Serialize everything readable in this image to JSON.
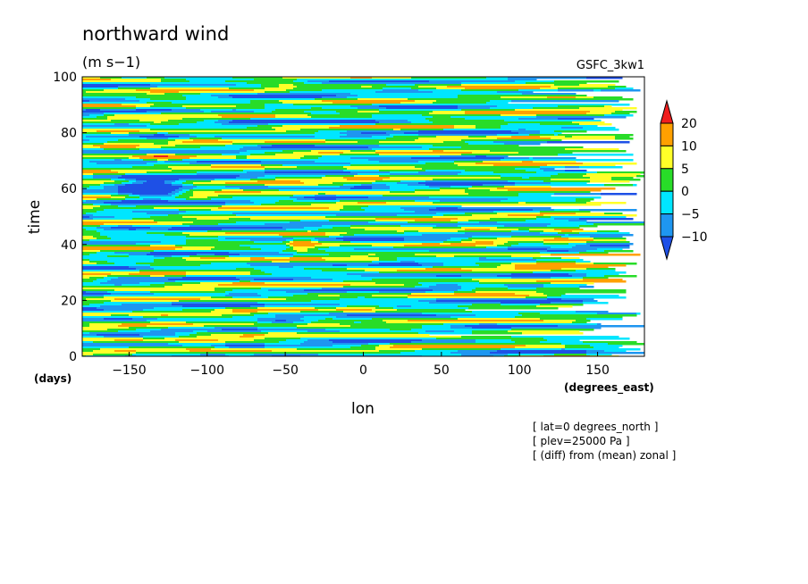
{
  "chart_data": {
    "type": "heatmap",
    "title": "northward wind",
    "units": "(m s−1)",
    "dataset_label": "GSFC_3kw1",
    "xlabel": "lon",
    "ylabel": "time",
    "x_unit": "(degrees_east)",
    "y_unit": "(days)",
    "xlim": [
      -180,
      180
    ],
    "ylim": [
      0,
      100
    ],
    "x_ticks": [
      -150,
      -100,
      -50,
      0,
      50,
      100,
      150
    ],
    "x_tick_labels": [
      "−150",
      "−100",
      "−50",
      "0",
      "50",
      "100",
      "150"
    ],
    "y_ticks": [
      0,
      20,
      40,
      60,
      80,
      100
    ],
    "y_tick_labels": [
      "0",
      "20",
      "40",
      "60",
      "80",
      "100"
    ],
    "color_levels": [
      -10,
      -5,
      0,
      5,
      10,
      20
    ],
    "colorbar_labels": [
      "20",
      "10",
      "5",
      "0",
      "−5",
      "−10"
    ],
    "colors": {
      "below_minus10": "#1e50e6",
      "minus10_to_minus5": "#1e96f0",
      "minus5_to_0": "#00e6ff",
      "0_to_5": "#28dc28",
      "5_to_10": "#ffff28",
      "10_to_20": "#ffa000",
      "above_20": "#f01e1e"
    },
    "notes": [
      "[ lat=0 degrees_north ]",
      "[ plev=25000 Pa ]",
      "[ (diff) from (mean) zonal ]"
    ]
  }
}
